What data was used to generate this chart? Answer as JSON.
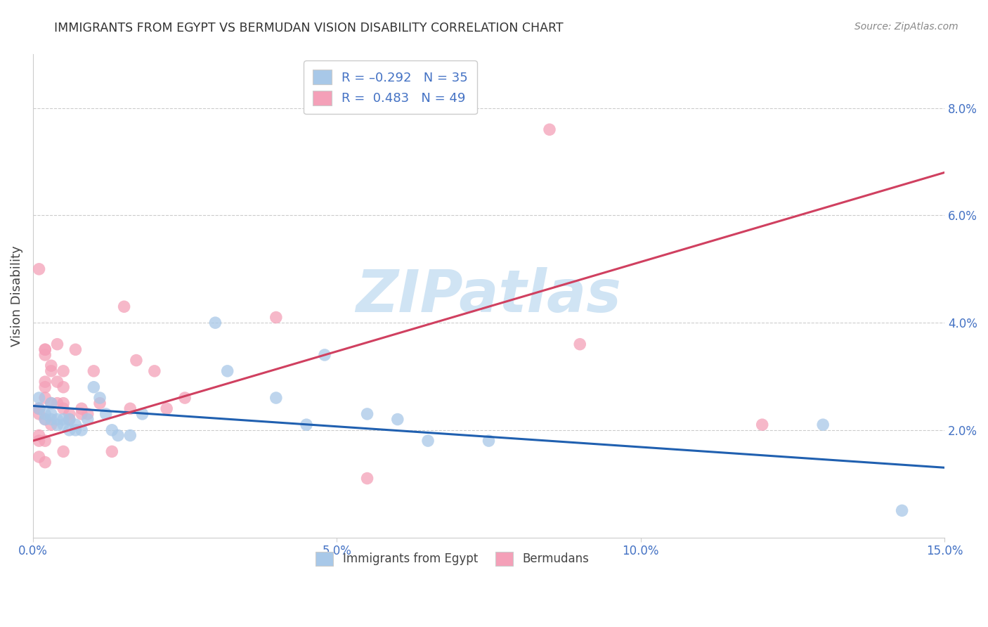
{
  "title": "IMMIGRANTS FROM EGYPT VS BERMUDAN VISION DISABILITY CORRELATION CHART",
  "source": "Source: ZipAtlas.com",
  "ylabel": "Vision Disability",
  "xlabel": "",
  "legend_label_blue": "Immigrants from Egypt",
  "legend_label_pink": "Bermudans",
  "blue_color": "#a8c8e8",
  "pink_color": "#f4a0b8",
  "line_blue": "#2060b0",
  "line_pink": "#d04060",
  "watermark_text": "ZIPatlas",
  "watermark_color": "#d0e4f4",
  "xlim": [
    0.0,
    0.15
  ],
  "ylim": [
    0.0,
    0.09
  ],
  "xticks": [
    0.0,
    0.05,
    0.1,
    0.15
  ],
  "yticks_right": [
    0.02,
    0.04,
    0.06,
    0.08
  ],
  "blue_line_x0": 0.0,
  "blue_line_y0": 0.0245,
  "blue_line_x1": 0.15,
  "blue_line_y1": 0.013,
  "pink_line_x0": 0.0,
  "pink_line_y0": 0.018,
  "pink_line_x1": 0.15,
  "pink_line_y1": 0.068,
  "blue_x": [
    0.001,
    0.001,
    0.002,
    0.002,
    0.003,
    0.003,
    0.003,
    0.004,
    0.004,
    0.005,
    0.005,
    0.006,
    0.006,
    0.007,
    0.007,
    0.008,
    0.009,
    0.01,
    0.011,
    0.012,
    0.013,
    0.014,
    0.016,
    0.018,
    0.03,
    0.032,
    0.04,
    0.045,
    0.048,
    0.055,
    0.06,
    0.065,
    0.075,
    0.13,
    0.143
  ],
  "blue_y": [
    0.026,
    0.024,
    0.022,
    0.023,
    0.022,
    0.023,
    0.025,
    0.022,
    0.021,
    0.021,
    0.022,
    0.02,
    0.022,
    0.021,
    0.02,
    0.02,
    0.022,
    0.028,
    0.026,
    0.023,
    0.02,
    0.019,
    0.019,
    0.023,
    0.04,
    0.031,
    0.026,
    0.021,
    0.034,
    0.023,
    0.022,
    0.018,
    0.018,
    0.021,
    0.005
  ],
  "pink_x": [
    0.001,
    0.001,
    0.001,
    0.001,
    0.001,
    0.001,
    0.001,
    0.001,
    0.002,
    0.002,
    0.002,
    0.002,
    0.002,
    0.002,
    0.002,
    0.002,
    0.002,
    0.003,
    0.003,
    0.003,
    0.003,
    0.004,
    0.004,
    0.004,
    0.005,
    0.005,
    0.005,
    0.005,
    0.005,
    0.006,
    0.006,
    0.007,
    0.008,
    0.008,
    0.009,
    0.01,
    0.011,
    0.013,
    0.015,
    0.016,
    0.017,
    0.02,
    0.022,
    0.025,
    0.04,
    0.055,
    0.085,
    0.09,
    0.12
  ],
  "pink_y": [
    0.05,
    0.024,
    0.024,
    0.024,
    0.023,
    0.019,
    0.018,
    0.015,
    0.035,
    0.035,
    0.034,
    0.029,
    0.028,
    0.026,
    0.022,
    0.018,
    0.014,
    0.032,
    0.031,
    0.025,
    0.021,
    0.036,
    0.029,
    0.025,
    0.031,
    0.028,
    0.025,
    0.024,
    0.016,
    0.023,
    0.022,
    0.035,
    0.024,
    0.023,
    0.023,
    0.031,
    0.025,
    0.016,
    0.043,
    0.024,
    0.033,
    0.031,
    0.024,
    0.026,
    0.041,
    0.011,
    0.076,
    0.036,
    0.021
  ]
}
